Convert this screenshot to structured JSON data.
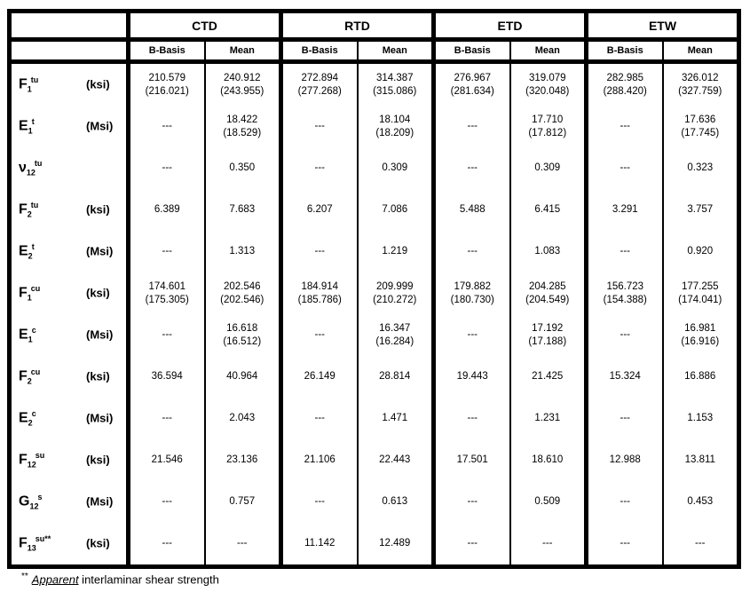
{
  "table": {
    "groups": [
      "CTD",
      "RTD",
      "ETD",
      "ETW"
    ],
    "subheaders": [
      "B-Basis",
      "Mean"
    ],
    "rows": [
      {
        "sym": {
          "base": "F",
          "sub": "1",
          "sup": "tu"
        },
        "unit": "(ksi)",
        "values": [
          "210.579\n(216.021)",
          "240.912\n(243.955)",
          "272.894\n(277.268)",
          "314.387\n(315.086)",
          "276.967\n(281.634)",
          "319.079\n(320.048)",
          "282.985\n(288.420)",
          "326.012\n(327.759)"
        ]
      },
      {
        "sym": {
          "base": "E",
          "sub": "1",
          "sup": "t"
        },
        "unit": "(Msi)",
        "values": [
          "---",
          "18.422\n(18.529)",
          "---",
          "18.104\n(18.209)",
          "---",
          "17.710\n(17.812)",
          "---",
          "17.636\n(17.745)"
        ]
      },
      {
        "sym": {
          "base": "ν",
          "sub": "12",
          "sup": "tu"
        },
        "unit": "",
        "values": [
          "---",
          "0.350",
          "---",
          "0.309",
          "---",
          "0.309",
          "---",
          "0.323"
        ]
      },
      {
        "sym": {
          "base": "F",
          "sub": "2",
          "sup": "tu"
        },
        "unit": "(ksi)",
        "values": [
          "6.389",
          "7.683",
          "6.207",
          "7.086",
          "5.488",
          "6.415",
          "3.291",
          "3.757"
        ]
      },
      {
        "sym": {
          "base": "E",
          "sub": "2",
          "sup": "t"
        },
        "unit": "(Msi)",
        "values": [
          "---",
          "1.313",
          "---",
          "1.219",
          "---",
          "1.083",
          "---",
          "0.920"
        ]
      },
      {
        "sym": {
          "base": "F",
          "sub": "1",
          "sup": "cu"
        },
        "unit": "(ksi)",
        "values": [
          "174.601\n(175.305)",
          "202.546\n(202.546)",
          "184.914\n(185.786)",
          "209.999\n(210.272)",
          "179.882\n(180.730)",
          "204.285\n(204.549)",
          "156.723\n(154.388)",
          "177.255\n(174.041)"
        ]
      },
      {
        "sym": {
          "base": "E",
          "sub": "1",
          "sup": "c"
        },
        "unit": "(Msi)",
        "values": [
          "---",
          "16.618\n(16.512)",
          "---",
          "16.347\n(16.284)",
          "---",
          "17.192\n(17.188)",
          "---",
          "16.981\n(16.916)"
        ]
      },
      {
        "sym": {
          "base": "F",
          "sub": "2",
          "sup": "cu"
        },
        "unit": "(ksi)",
        "values": [
          "36.594",
          "40.964",
          "26.149",
          "28.814",
          "19.443",
          "21.425",
          "15.324",
          "16.886"
        ]
      },
      {
        "sym": {
          "base": "E",
          "sub": "2",
          "sup": "c"
        },
        "unit": "(Msi)",
        "values": [
          "---",
          "2.043",
          "---",
          "1.471",
          "---",
          "1.231",
          "---",
          "1.153"
        ]
      },
      {
        "sym": {
          "base": "F",
          "sub": "12",
          "sup": "su"
        },
        "unit": "(ksi)",
        "values": [
          "21.546",
          "23.136",
          "21.106",
          "22.443",
          "17.501",
          "18.610",
          "12.988",
          "13.811"
        ]
      },
      {
        "sym": {
          "base": "G",
          "sub": "12",
          "sup": "s"
        },
        "unit": "(Msi)",
        "values": [
          "---",
          "0.757",
          "---",
          "0.613",
          "---",
          "0.509",
          "---",
          "0.453"
        ]
      },
      {
        "sym": {
          "base": "F",
          "sub": "13",
          "sup": "su**"
        },
        "unit": "(ksi)",
        "values": [
          "---",
          "---",
          "11.142",
          "12.489",
          "---",
          "---",
          "---",
          "---"
        ]
      }
    ]
  },
  "footnote": {
    "marker": "**",
    "emphasis": "Apparent",
    "text": " interlaminar shear strength"
  },
  "colors": {
    "border": "#000000",
    "background": "#ffffff",
    "text": "#000000"
  }
}
